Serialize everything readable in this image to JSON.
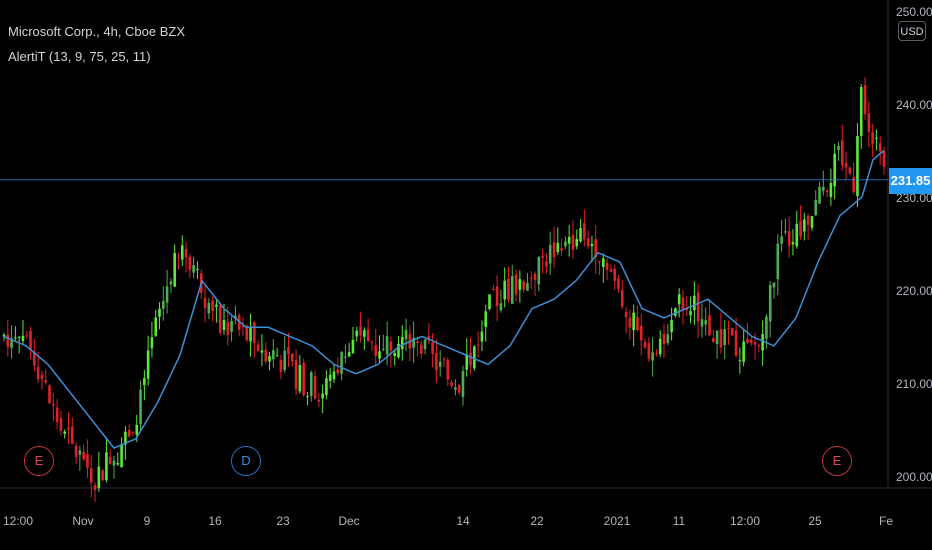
{
  "legend": {
    "symbol_line": "Microsoft Corp., 4h, Cboe BZX",
    "indicator_line": "AlertiT (13, 9, 75, 25, 11)"
  },
  "currency_button": "USD",
  "last_price_label": "231.85",
  "events": [
    {
      "label": "E",
      "type": "earnings"
    },
    {
      "label": "D",
      "type": "dividend"
    },
    {
      "label": "E",
      "type": "earnings"
    }
  ],
  "colors": {
    "up": "#4caf50",
    "up_bright": "#5ae83b",
    "down": "#e0202a",
    "ma_line": "#3b8fd6",
    "price_line": "#2196f3"
  },
  "chart_data": {
    "type": "candlestick",
    "title": "Microsoft Corp., 4h, Cboe BZX",
    "y_axis": {
      "ticks": [
        200,
        210,
        220,
        230,
        240,
        250
      ],
      "tick_labels": [
        "200.00",
        "210.00",
        "220.00",
        "230.00",
        "240.00",
        "250.00"
      ],
      "range": [
        198,
        252
      ]
    },
    "x_axis": {
      "tick_labels": [
        "12:00",
        "Nov",
        "9",
        "16",
        "23",
        "Dec",
        "14",
        "22",
        "2021",
        "11",
        "12:00",
        "25",
        "Fe"
      ]
    },
    "last_price": 231.85,
    "anchors": [
      [
        0,
        215
      ],
      [
        4,
        216
      ],
      [
        8,
        213
      ],
      [
        12,
        208
      ],
      [
        16,
        204
      ],
      [
        20,
        202
      ],
      [
        24,
        200
      ],
      [
        28,
        202
      ],
      [
        32,
        204
      ],
      [
        36,
        208
      ],
      [
        40,
        216
      ],
      [
        44,
        222
      ],
      [
        48,
        224
      ],
      [
        50,
        223
      ],
      [
        52,
        220
      ],
      [
        56,
        217
      ],
      [
        60,
        216
      ],
      [
        64,
        215
      ],
      [
        68,
        214
      ],
      [
        72,
        213
      ],
      [
        76,
        211
      ],
      [
        80,
        210
      ],
      [
        84,
        209
      ],
      [
        88,
        212
      ],
      [
        92,
        214
      ],
      [
        96,
        215
      ],
      [
        100,
        214
      ],
      [
        104,
        215
      ],
      [
        108,
        214
      ],
      [
        112,
        213
      ],
      [
        116,
        211
      ],
      [
        120,
        210
      ],
      [
        124,
        214
      ],
      [
        128,
        218
      ],
      [
        132,
        220
      ],
      [
        136,
        221
      ],
      [
        140,
        222
      ],
      [
        144,
        224
      ],
      [
        148,
        225
      ],
      [
        152,
        226
      ],
      [
        156,
        225
      ],
      [
        160,
        222
      ],
      [
        164,
        218
      ],
      [
        168,
        214
      ],
      [
        172,
        213
      ],
      [
        176,
        218
      ],
      [
        180,
        219
      ],
      [
        184,
        217
      ],
      [
        188,
        215
      ],
      [
        192,
        214
      ],
      [
        196,
        213
      ],
      [
        200,
        215
      ],
      [
        204,
        224
      ],
      [
        208,
        226
      ],
      [
        212,
        227
      ],
      [
        216,
        231
      ],
      [
        220,
        234
      ],
      [
        224,
        232
      ],
      [
        226,
        243
      ],
      [
        228,
        238
      ],
      [
        230,
        236
      ],
      [
        232,
        232
      ]
    ],
    "ma_anchors": [
      [
        0,
        215
      ],
      [
        4,
        214
      ],
      [
        8,
        212
      ],
      [
        12,
        209
      ],
      [
        16,
        206
      ],
      [
        20,
        203
      ],
      [
        24,
        204
      ],
      [
        28,
        208
      ],
      [
        32,
        213
      ],
      [
        36,
        221
      ],
      [
        40,
        218
      ],
      [
        44,
        216
      ],
      [
        48,
        216
      ],
      [
        52,
        215
      ],
      [
        56,
        214
      ],
      [
        60,
        212
      ],
      [
        64,
        211
      ],
      [
        68,
        212
      ],
      [
        72,
        214
      ],
      [
        76,
        215
      ],
      [
        80,
        214
      ],
      [
        84,
        213
      ],
      [
        88,
        212
      ],
      [
        92,
        214
      ],
      [
        96,
        218
      ],
      [
        100,
        219
      ],
      [
        104,
        221
      ],
      [
        108,
        224
      ],
      [
        112,
        223
      ],
      [
        116,
        218
      ],
      [
        120,
        217
      ],
      [
        124,
        218
      ],
      [
        128,
        219
      ],
      [
        132,
        217
      ],
      [
        136,
        215
      ],
      [
        140,
        214
      ],
      [
        144,
        217
      ],
      [
        148,
        223
      ],
      [
        152,
        228
      ],
      [
        156,
        230
      ],
      [
        158,
        234
      ],
      [
        160,
        235
      ]
    ]
  }
}
